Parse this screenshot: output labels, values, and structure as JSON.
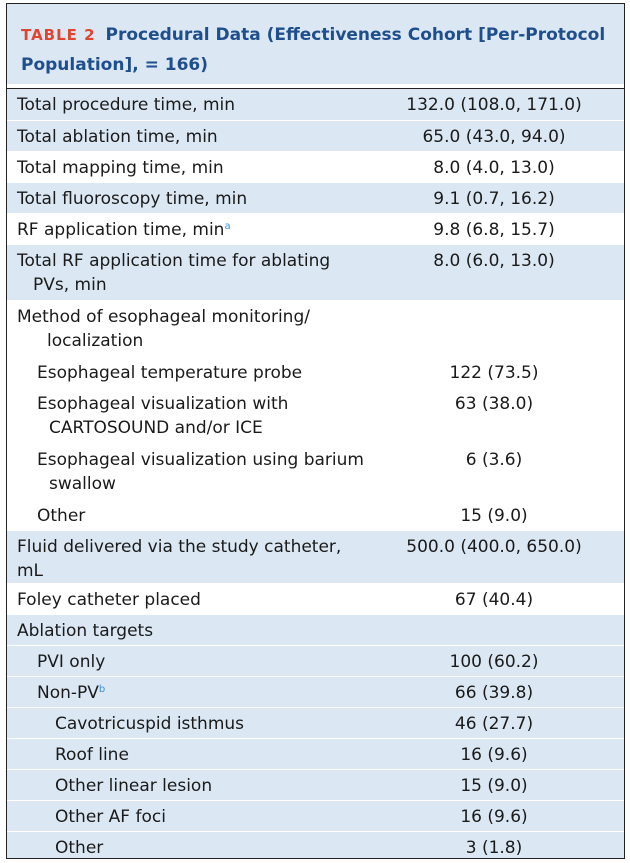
{
  "caption": {
    "table_label": "TABLE 2",
    "title": "Procedural Data (Effectiveness Cohort [Per-Protocol Population], = 166)"
  },
  "rows": {
    "r0": {
      "label": "Total procedure time, min",
      "value": "132.0 (108.0, 171.0)"
    },
    "r1": {
      "label": "Total ablation time, min",
      "value": "65.0 (43.0, 94.0)"
    },
    "r2": {
      "label": "Total mapping time, min",
      "value": "8.0 (4.0, 13.0)"
    },
    "r3": {
      "label": "Total fluoroscopy time, min",
      "value": "9.1 (0.7, 16.2)"
    },
    "r4": {
      "label": "RF application time, min",
      "footnote": "a",
      "value": "9.8 (6.8, 15.7)"
    },
    "r5": {
      "label_line1": "Total RF application time for ablating",
      "label_line2": "PVs, min",
      "value": "8.0 (6.0, 13.0)"
    },
    "r6": {
      "label_line1": "Method of esophageal monitoring/",
      "label_line2": "localization"
    },
    "r7": {
      "label": "Esophageal temperature probe",
      "value": "122 (73.5)"
    },
    "r8": {
      "label_line1": "Esophageal visualization with",
      "label_line2": "CARTOSOUND and/or ICE",
      "value": "63 (38.0)"
    },
    "r9": {
      "label_line1": "Esophageal visualization using barium",
      "label_line2": "swallow",
      "value": "6 (3.6)"
    },
    "r10": {
      "label": "Other",
      "value": "15 (9.0)"
    },
    "r11": {
      "label": "Fluid delivered via the study catheter, mL",
      "value": "500.0 (400.0, 650.0)"
    },
    "r12": {
      "label": "Foley catheter placed",
      "value": "67 (40.4)"
    },
    "r13": {
      "label": "Ablation targets"
    },
    "r14": {
      "label": "PVI only",
      "value": "100 (60.2)"
    },
    "r15": {
      "label": "Non-PV",
      "footnote": "b",
      "value": "66 (39.8)"
    },
    "r16": {
      "label": "Cavotricuspid isthmus",
      "value": "46 (27.7)"
    },
    "r17": {
      "label": "Roof line",
      "value": "16 (9.6)"
    },
    "r18": {
      "label": "Other linear lesion",
      "value": "15 (9.0)"
    },
    "r19": {
      "label": "Other AF foci",
      "value": "16 (9.6)"
    },
    "r20": {
      "label": "Other",
      "value": "3 (1.8)"
    }
  },
  "colors": {
    "shade": "#dbe8f4",
    "title": "#1f4e8c",
    "table_label": "#e0452f",
    "footnote": "#3c8fd6"
  }
}
